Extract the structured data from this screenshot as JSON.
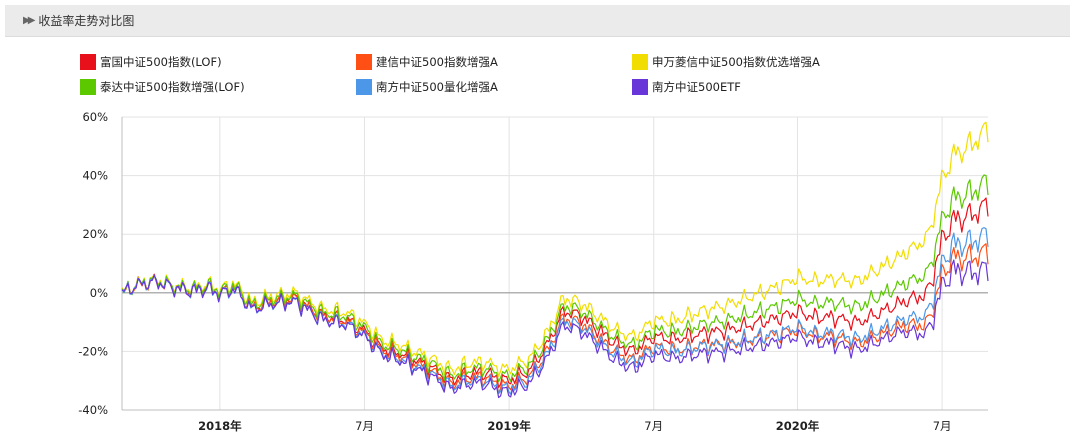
{
  "header": {
    "title": "收益率走势对比图",
    "icon": "double-arrow-right-icon"
  },
  "chart_data": {
    "type": "line",
    "title": "收益率走势对比图",
    "ylim": [
      -40,
      60
    ],
    "y_ticks": [
      "60%",
      "40%",
      "20%",
      "0%",
      "-20%",
      "-40%"
    ],
    "x_ticks": [
      {
        "label": "2018年",
        "t": 0.113,
        "bold": true
      },
      {
        "label": "7月",
        "t": 0.28,
        "bold": false
      },
      {
        "label": "2019年",
        "t": 0.447,
        "bold": true
      },
      {
        "label": "7月",
        "t": 0.614,
        "bold": false
      },
      {
        "label": "2020年",
        "t": 0.78,
        "bold": true
      },
      {
        "label": "7月",
        "t": 0.947,
        "bold": false
      }
    ],
    "grid": true,
    "legend_position": "top",
    "anchor": {
      "t": [
        0,
        0.02,
        0.04,
        0.06,
        0.08,
        0.1,
        0.113,
        0.13,
        0.15,
        0.17,
        0.2,
        0.23,
        0.26,
        0.28,
        0.3,
        0.32,
        0.34,
        0.36,
        0.38,
        0.4,
        0.42,
        0.44,
        0.447,
        0.47,
        0.49,
        0.51,
        0.53,
        0.55,
        0.57,
        0.59,
        0.614,
        0.64,
        0.67,
        0.7,
        0.73,
        0.76,
        0.78,
        0.8,
        0.82,
        0.85,
        0.88,
        0.91,
        0.93,
        0.94,
        0.95,
        0.96,
        0.98,
        1.0
      ],
      "v": [
        0,
        3,
        4,
        2,
        1,
        2,
        0,
        2,
        -5,
        -3,
        -2,
        -8,
        -10,
        -14,
        -20,
        -22,
        -25,
        -28,
        -32,
        -30,
        -30,
        -33,
        -33,
        -30,
        -22,
        -10,
        -12,
        -17,
        -22,
        -25,
        -20,
        -21,
        -19,
        -18,
        -16,
        -14,
        -12,
        -14,
        -14,
        -16,
        -12,
        -8,
        -6,
        5,
        15,
        20,
        22,
        26
      ]
    },
    "series": [
      {
        "name": "富国中证500指数(LOF)",
        "color": "#e8101a",
        "offset": [
          0,
          0,
          5,
          6,
          4
        ]
      },
      {
        "name": "建信中证500指数增强A",
        "color": "#ff4f14",
        "offset": [
          0,
          0,
          2,
          -2,
          -12
        ]
      },
      {
        "name": "申万菱信中证500指数优选增强A",
        "color": "#f2dd00",
        "offset": [
          0,
          2,
          10,
          22,
          30
        ]
      },
      {
        "name": "泰达中证500指数增强(LOF)",
        "color": "#5cc800",
        "offset": [
          0,
          1,
          7,
          12,
          12
        ]
      },
      {
        "name": "南方中证500量化增强A",
        "color": "#4c97e8",
        "offset": [
          0,
          -1,
          1,
          0,
          -6
        ]
      },
      {
        "name": "南方中证500ETF",
        "color": "#6836d8",
        "offset": [
          0,
          -1,
          -1,
          -4,
          -18
        ]
      }
    ]
  }
}
